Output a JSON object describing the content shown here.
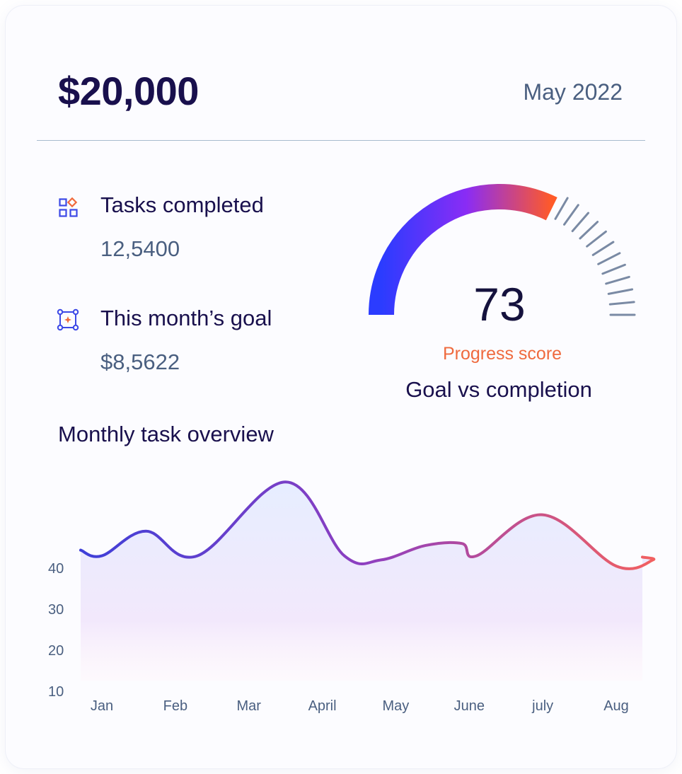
{
  "header": {
    "amount": "$20,000",
    "period": "May 2022"
  },
  "stats": [
    {
      "label": "Tasks completed",
      "value": "12,5400",
      "icon": "grid-shapes-icon"
    },
    {
      "label": "This month’s goal",
      "value": "$8,5622",
      "icon": "target-frame-icon"
    }
  ],
  "gauge": {
    "value": "73",
    "score": 73,
    "caption": "Progress score",
    "title": "Goal vs completion",
    "gradient": [
      "#2b3cff",
      "#8a2cf5",
      "#ff5a28"
    ],
    "tick_color": "#7a8aa4"
  },
  "chart_title": "Monthly task overview",
  "chart_data": {
    "type": "area",
    "title": "Monthly task overview",
    "categories": [
      "Jan",
      "Feb",
      "Mar",
      "April",
      "May",
      "June",
      "july",
      "Aug"
    ],
    "y_ticks": [
      10,
      20,
      30,
      40
    ],
    "ylim": [
      10,
      40
    ],
    "grid": false,
    "x": [
      0.0,
      0.6,
      1.3,
      2.5,
      3.3,
      3.8,
      4.4,
      4.9,
      5.1,
      6.0,
      7.0,
      7.5
    ],
    "y": [
      43.0,
      49.0,
      43.0,
      61.0,
      43.0,
      42.0,
      45.5,
      46.0,
      43.0,
      53.0,
      40.5,
      42.0
    ],
    "line_gradient": [
      "#3e3fd8",
      "#8f3fc0",
      "#f26060"
    ]
  }
}
